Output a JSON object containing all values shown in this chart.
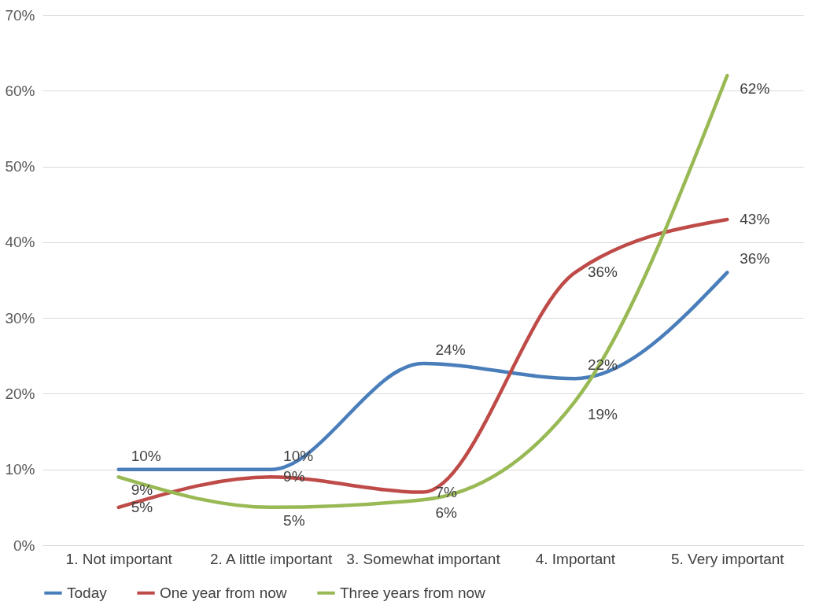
{
  "chart_data": {
    "type": "line",
    "categories": [
      "1. Not important",
      "2. A little important",
      "3. Somewhat important",
      "4. Important",
      "5. Very important"
    ],
    "series": [
      {
        "name": "Today",
        "color": "#4a7ebb",
        "values": [
          10,
          10,
          24,
          22,
          36
        ],
        "value_labels": [
          "10%",
          "10%",
          "24%",
          "22%",
          "36%"
        ]
      },
      {
        "name": "One year from now",
        "color": "#be4b48",
        "values": [
          5,
          9,
          7,
          36,
          43
        ],
        "value_labels": [
          "5%",
          "9%",
          "7%",
          "36%",
          "43%"
        ]
      },
      {
        "name": "Three years from now",
        "color": "#98b954",
        "values": [
          9,
          5,
          6,
          19,
          62
        ],
        "value_labels": [
          "9%",
          "5%",
          "6%",
          "19%",
          "62%"
        ]
      }
    ],
    "ylim": [
      0,
      70
    ],
    "yticks": [
      {
        "value": 0,
        "label": "0%"
      },
      {
        "value": 10,
        "label": "10%"
      },
      {
        "value": 20,
        "label": "20%"
      },
      {
        "value": 30,
        "label": "30%"
      },
      {
        "value": 40,
        "label": "40%"
      },
      {
        "value": 50,
        "label": "50%"
      },
      {
        "value": 60,
        "label": "60%"
      },
      {
        "value": 70,
        "label": "70%"
      }
    ],
    "grid": "y",
    "legend": "bottom",
    "marker": "none",
    "line_style": "solid"
  }
}
